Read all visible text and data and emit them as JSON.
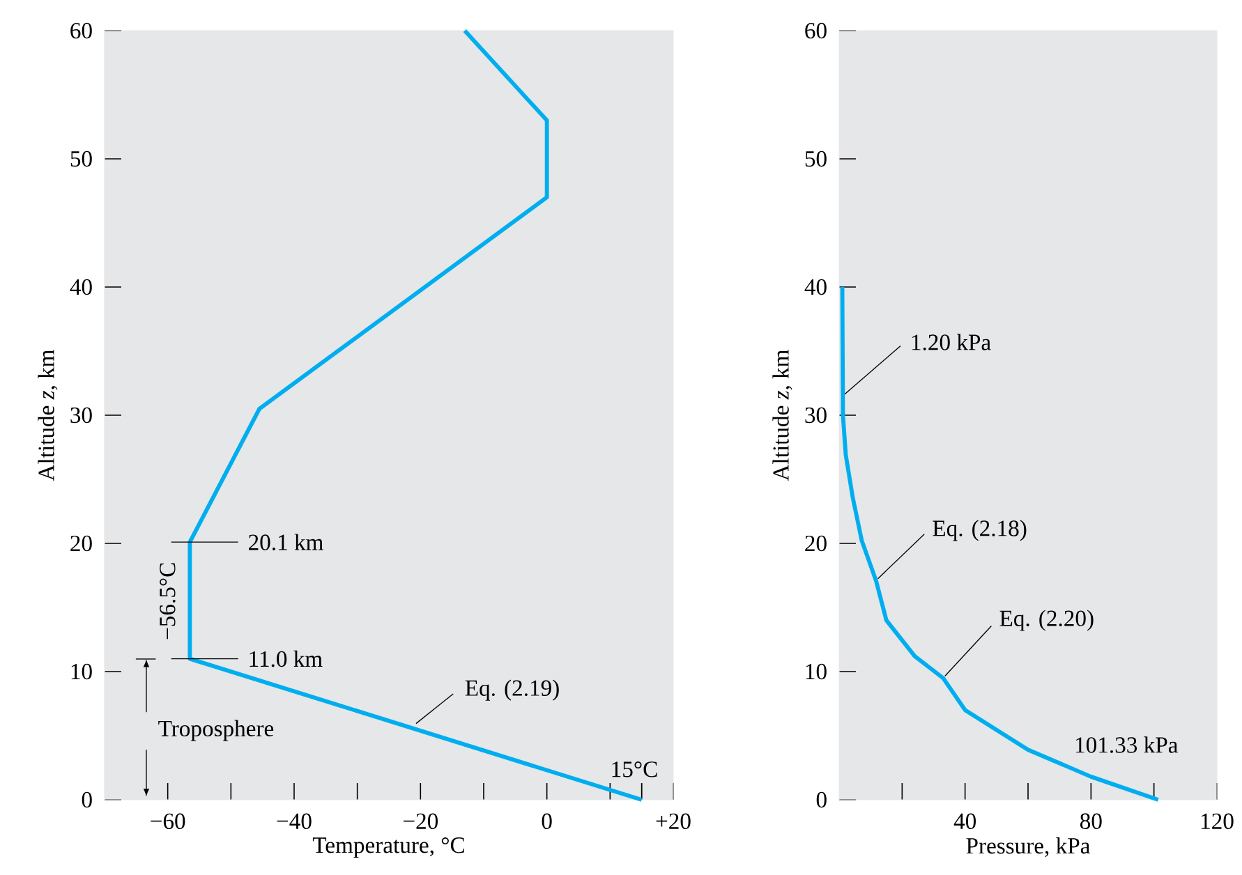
{
  "chart_data": [
    {
      "type": "line",
      "xlabel": "Temperature, °C",
      "ylabel": "Altitude *z*, km",
      "color": "#00aeef",
      "marker": "none",
      "xlim": [
        -70,
        20
      ],
      "ylim": [
        0,
        60
      ],
      "xticks": [
        {
          "value": -60,
          "label": "−60"
        },
        {
          "value": -50,
          "label": null
        },
        {
          "value": -40,
          "label": "−40"
        },
        {
          "value": -30,
          "label": null
        },
        {
          "value": -20,
          "label": "−20"
        },
        {
          "value": -10,
          "label": null
        },
        {
          "value": 0,
          "label": "0"
        },
        {
          "value": 10,
          "label": null
        },
        {
          "value": 15,
          "label": null
        },
        {
          "value": 20,
          "label": "+20"
        }
      ],
      "yticks": [
        0,
        10,
        20,
        30,
        40,
        50,
        60
      ],
      "x": [
        15,
        -56.5,
        -56.5,
        -45.5,
        0,
        0,
        -13
      ],
      "values": [
        0,
        11.0,
        20.1,
        30.5,
        47,
        53,
        60
      ],
      "annotations": [
        {
          "text": "20.1 km",
          "x": -56.5,
          "y": 20.1
        },
        {
          "text": "11.0 km",
          "x": -56.5,
          "y": 11.0
        },
        {
          "text": "−56.5°C",
          "x": -56.5,
          "y": 15.5
        },
        {
          "text": "Eq. (2.19)",
          "x": -21,
          "y": 5.8
        },
        {
          "text": "15°C",
          "x": 15,
          "y": 0
        },
        "Troposphere"
      ]
    },
    {
      "type": "line",
      "xlabel": "Pressure, kPa",
      "ylabel": "Altitude *z*, km",
      "color": "#00aeef",
      "marker": "none",
      "xlim": [
        0,
        120
      ],
      "ylim": [
        0,
        60
      ],
      "xticks": [
        {
          "value": 20,
          "label": null
        },
        {
          "value": 40,
          "label": "40"
        },
        {
          "value": 60,
          "label": null
        },
        {
          "value": 80,
          "label": "80"
        },
        {
          "value": 100,
          "label": null
        },
        {
          "value": 120,
          "label": "120"
        }
      ],
      "yticks": [
        0,
        10,
        20,
        30,
        40,
        50,
        60
      ],
      "x": [
        101.33,
        80,
        60,
        40,
        33,
        24,
        15,
        11.7,
        7.2,
        4.3,
        2.1,
        1.2,
        1.0
      ],
      "values": [
        0,
        1.8,
        3.9,
        7.0,
        9.5,
        11.2,
        14.0,
        17.1,
        20.2,
        23.6,
        26.9,
        30,
        40
      ],
      "annotations": [
        {
          "text": "1.20 kPa",
          "x": 1.2,
          "y": 31.5
        },
        {
          "text": "Eq. (2.18)",
          "x": 11.7,
          "y": 17.1
        },
        {
          "text": "Eq. (2.20)",
          "x": 33,
          "y": 9.5
        },
        {
          "text": "101.33 kPa",
          "x": 101.33,
          "y": 0
        }
      ]
    }
  ]
}
